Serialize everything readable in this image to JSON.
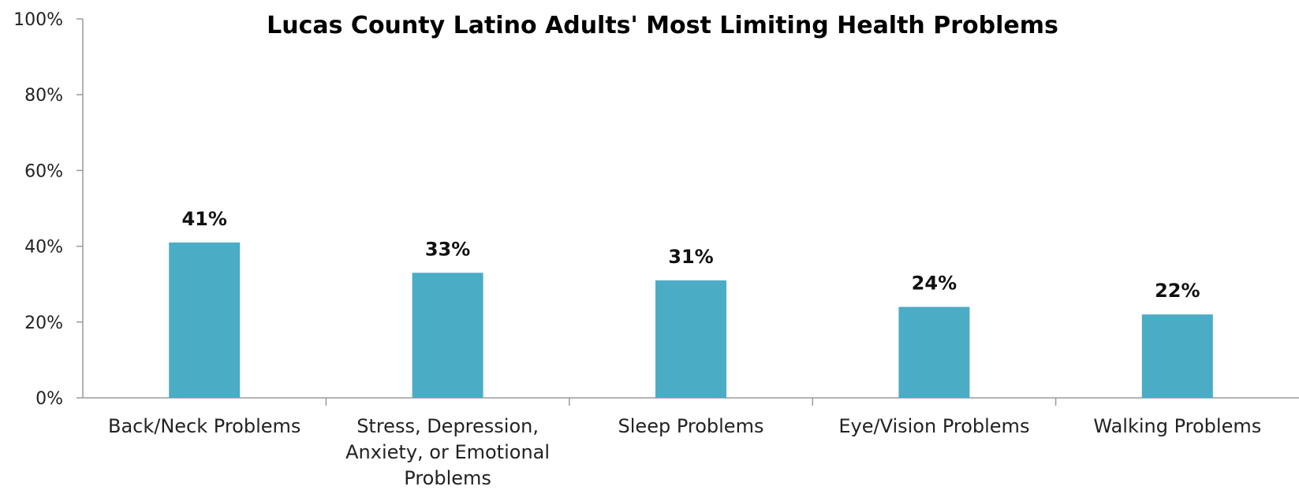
{
  "chart_data": {
    "type": "bar",
    "title": "Lucas County Latino Adults' Most Limiting Health Problems",
    "xlabel": "",
    "ylabel": "",
    "categories": [
      [
        "Back/Neck Problems"
      ],
      [
        "Stress, Depression,",
        "Anxiety, or Emotional",
        "Problems"
      ],
      [
        "Sleep Problems"
      ],
      [
        "Eye/Vision Problems"
      ],
      [
        "Walking Problems"
      ]
    ],
    "values": [
      41,
      33,
      31,
      24,
      22
    ],
    "data_labels": [
      "41%",
      "33%",
      "31%",
      "24%",
      "22%"
    ],
    "ylim": [
      0,
      100
    ],
    "yticks": [
      0,
      20,
      40,
      60,
      80,
      100
    ],
    "ytick_labels": [
      "0%",
      "20%",
      "40%",
      "60%",
      "80%",
      "100%"
    ],
    "grid": false,
    "bar_color": "#4bacc6"
  }
}
